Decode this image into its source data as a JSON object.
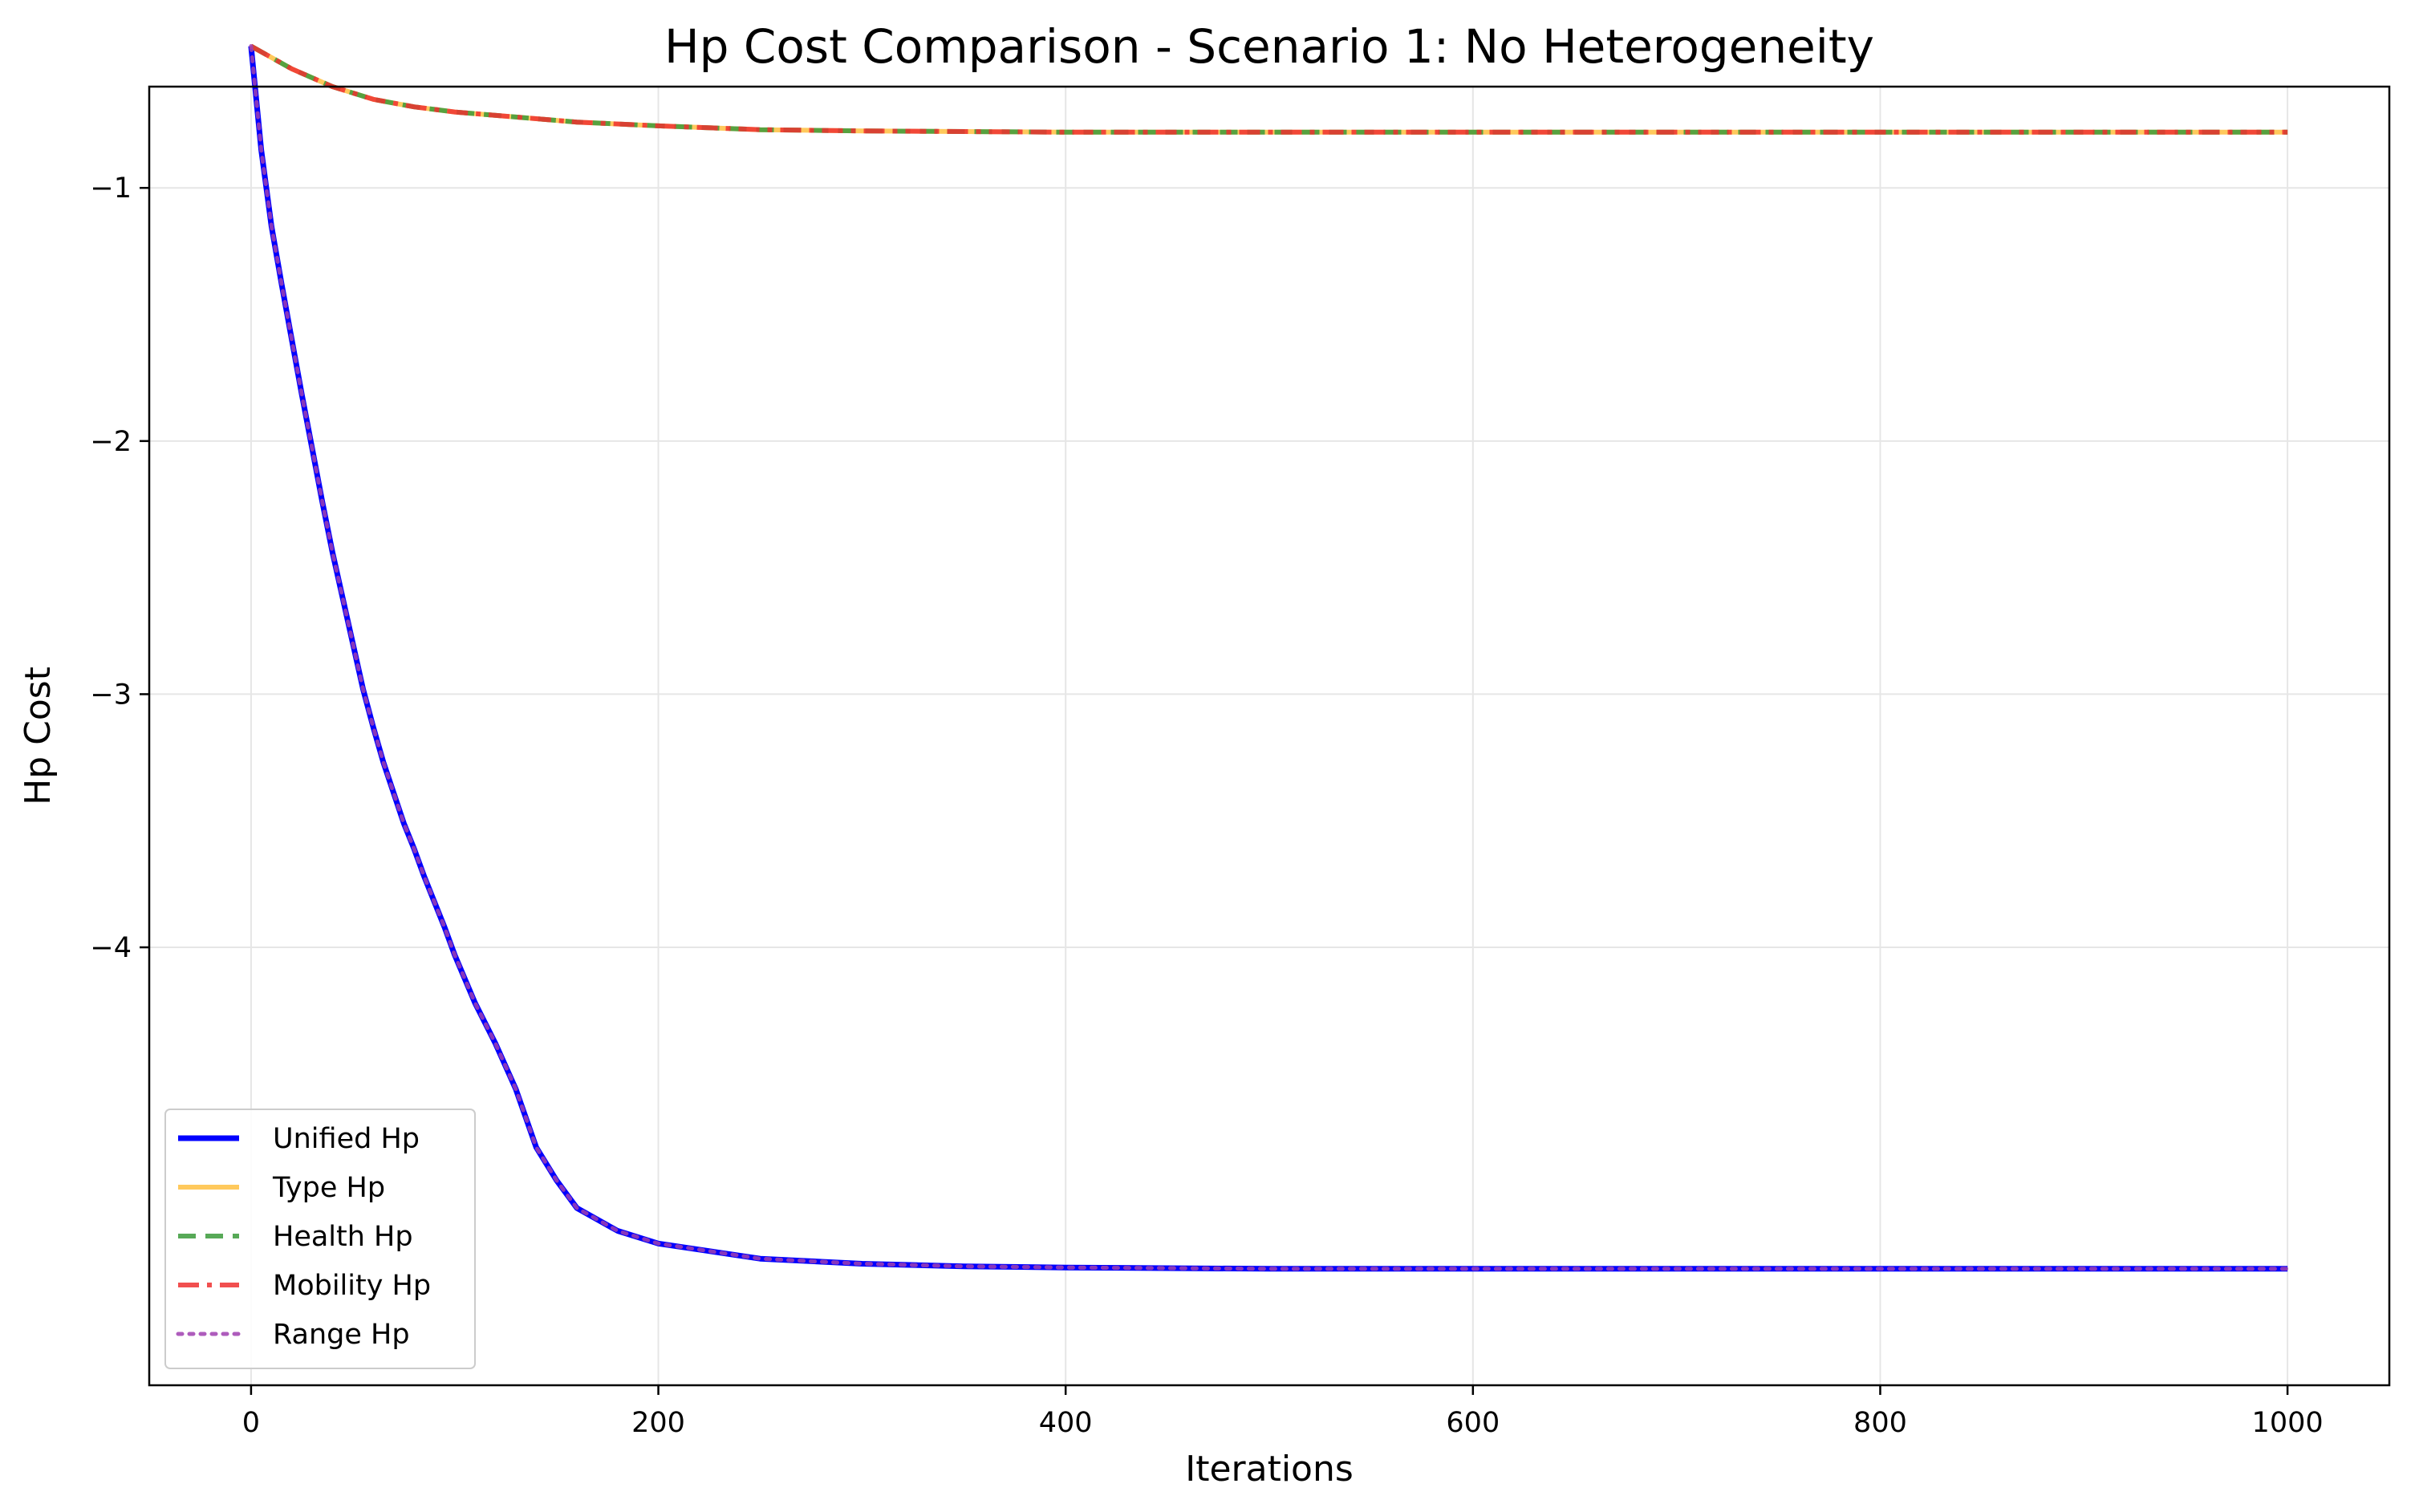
{
  "chart_data": {
    "type": "line",
    "title": "Hp Cost Comparison - Scenario 1: No Heterogeneity",
    "xlabel": "Iterations",
    "ylabel": "Hp Cost",
    "xlim": [
      -50,
      1050
    ],
    "ylim": [
      -5.73,
      -0.6
    ],
    "xticks": [
      0,
      200,
      400,
      600,
      800,
      1000
    ],
    "yticks": [
      -1,
      -2,
      -3,
      -4
    ],
    "xtick_labels": [
      "0",
      "200",
      "400",
      "600",
      "800",
      "1000"
    ],
    "ytick_labels": [
      "−1",
      "−2",
      "−3",
      "−4"
    ],
    "grid": true,
    "legend_position": "lower-left",
    "series": [
      {
        "name": "Unified Hp",
        "color": "#0000ff",
        "style": "solid",
        "x": [
          0,
          5,
          10,
          15,
          20,
          25,
          30,
          35,
          40,
          45,
          50,
          55,
          60,
          65,
          70,
          75,
          80,
          85,
          90,
          95,
          100,
          110,
          120,
          130,
          140,
          150,
          160,
          180,
          200,
          250,
          300,
          350,
          400,
          500,
          600,
          700,
          800,
          900,
          1000
        ],
        "y": [
          -0.44,
          -0.85,
          -1.15,
          -1.38,
          -1.6,
          -1.82,
          -2.03,
          -2.24,
          -2.44,
          -2.62,
          -2.8,
          -2.98,
          -3.13,
          -3.27,
          -3.39,
          -3.51,
          -3.61,
          -3.72,
          -3.82,
          -3.92,
          -4.03,
          -4.22,
          -4.38,
          -4.56,
          -4.79,
          -4.92,
          -5.03,
          -5.12,
          -5.17,
          -5.23,
          -5.25,
          -5.26,
          -5.265,
          -5.27,
          -5.27,
          -5.27,
          -5.27,
          -5.27,
          -5.27
        ]
      },
      {
        "name": "Type Hp",
        "color": "#ffbf40",
        "style": "solid",
        "x": [
          0,
          20,
          40,
          60,
          80,
          100,
          130,
          160,
          200,
          250,
          300,
          400,
          500,
          600,
          700,
          800,
          900,
          1000
        ],
        "y": [
          -0.44,
          -0.53,
          -0.6,
          -0.65,
          -0.68,
          -0.7,
          -0.72,
          -0.74,
          -0.755,
          -0.77,
          -0.775,
          -0.78,
          -0.78,
          -0.78,
          -0.78,
          -0.78,
          -0.78,
          -0.78
        ]
      },
      {
        "name": "Health Hp",
        "color": "#3a9a3a",
        "style": "dashed",
        "x": [
          0,
          20,
          40,
          60,
          80,
          100,
          130,
          160,
          200,
          250,
          300,
          400,
          500,
          600,
          700,
          800,
          900,
          1000
        ],
        "y": [
          -0.44,
          -0.53,
          -0.6,
          -0.65,
          -0.68,
          -0.7,
          -0.72,
          -0.74,
          -0.755,
          -0.77,
          -0.775,
          -0.78,
          -0.78,
          -0.78,
          -0.78,
          -0.78,
          -0.78,
          -0.78
        ]
      },
      {
        "name": "Mobility Hp",
        "color": "#ef3030",
        "style": "dashdot",
        "x": [
          0,
          20,
          40,
          60,
          80,
          100,
          130,
          160,
          200,
          250,
          300,
          400,
          500,
          600,
          700,
          800,
          900,
          1000
        ],
        "y": [
          -0.44,
          -0.53,
          -0.6,
          -0.65,
          -0.68,
          -0.7,
          -0.72,
          -0.74,
          -0.755,
          -0.77,
          -0.775,
          -0.78,
          -0.78,
          -0.78,
          -0.78,
          -0.78,
          -0.78,
          -0.78
        ]
      },
      {
        "name": "Range Hp",
        "color": "#a040b0",
        "style": "dotted",
        "x": [
          0,
          5,
          10,
          15,
          20,
          25,
          30,
          35,
          40,
          45,
          50,
          55,
          60,
          65,
          70,
          75,
          80,
          85,
          90,
          95,
          100,
          110,
          120,
          130,
          140,
          150,
          160,
          180,
          200,
          250,
          300,
          350,
          400,
          500,
          600,
          700,
          800,
          900,
          1000
        ],
        "y": [
          -0.44,
          -0.85,
          -1.15,
          -1.38,
          -1.6,
          -1.82,
          -2.03,
          -2.24,
          -2.44,
          -2.62,
          -2.8,
          -2.98,
          -3.13,
          -3.27,
          -3.39,
          -3.51,
          -3.61,
          -3.72,
          -3.82,
          -3.92,
          -4.03,
          -4.22,
          -4.38,
          -4.56,
          -4.79,
          -4.92,
          -5.03,
          -5.12,
          -5.17,
          -5.23,
          -5.25,
          -5.26,
          -5.265,
          -5.27,
          -5.27,
          -5.27,
          -5.27,
          -5.27,
          -5.27
        ]
      }
    ]
  }
}
